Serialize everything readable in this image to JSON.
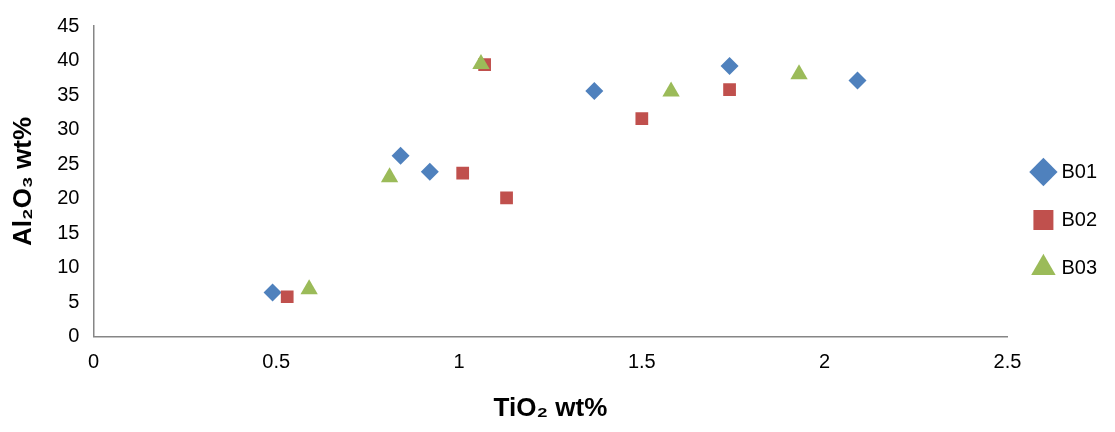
{
  "chart_data": {
    "type": "scatter",
    "xlabel": "TiO₂ wt%",
    "ylabel": "Al₂O₃ wt%",
    "xlim": [
      0,
      2.5
    ],
    "xticks": [
      0,
      0.5,
      1,
      1.5,
      2,
      2.5
    ],
    "ylim": [
      0,
      45
    ],
    "yticks": [
      0,
      5,
      10,
      15,
      20,
      25,
      30,
      35,
      40,
      45
    ],
    "grid": false,
    "legend": "right",
    "series": [
      {
        "name": "B01",
        "color": "#4f81bd",
        "marker": "diamond",
        "x": [
          0.49,
          0.84,
          0.92,
          1.37,
          1.74,
          2.09
        ],
        "values": [
          6.4,
          26.2,
          23.9,
          35.6,
          39.2,
          37.1
        ]
      },
      {
        "name": "B02",
        "color": "#c0504d",
        "marker": "square",
        "x": [
          0.53,
          1.01,
          1.07,
          1.13,
          1.5,
          1.74
        ],
        "values": [
          5.8,
          23.7,
          39.4,
          20.1,
          31.6,
          35.8
        ]
      },
      {
        "name": "B03",
        "color": "#9bbb59",
        "marker": "triangle",
        "x": [
          0.59,
          0.81,
          1.06,
          1.58,
          1.93
        ],
        "values": [
          6.9,
          23.1,
          39.5,
          35.5,
          38.0
        ]
      }
    ]
  }
}
